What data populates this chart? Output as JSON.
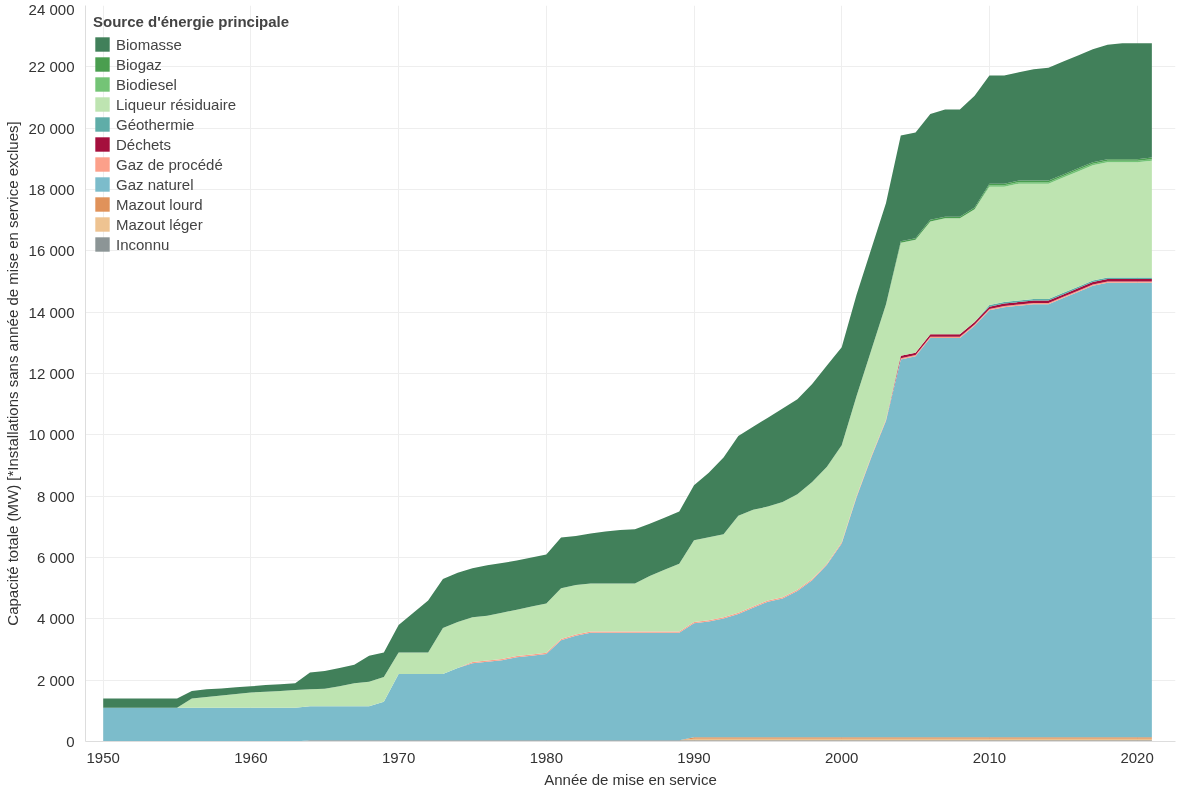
{
  "chart_data": {
    "type": "area",
    "stacked": true,
    "xlabel": "Année de mise en service",
    "ylabel": "Capacité totale (MW) [*Installations sans année de mise en service exclues]",
    "legend_title": "Source d'énergie principale",
    "legend": "top left",
    "grid": true,
    "x": [
      1950,
      1951,
      1952,
      1953,
      1954,
      1955,
      1956,
      1957,
      1958,
      1959,
      1960,
      1961,
      1962,
      1963,
      1964,
      1965,
      1966,
      1967,
      1968,
      1969,
      1970,
      1971,
      1972,
      1973,
      1974,
      1975,
      1976,
      1977,
      1978,
      1979,
      1980,
      1981,
      1982,
      1983,
      1984,
      1985,
      1986,
      1987,
      1988,
      1989,
      1990,
      1991,
      1992,
      1993,
      1994,
      1995,
      1996,
      1997,
      1998,
      1999,
      2000,
      2001,
      2002,
      2003,
      2004,
      2005,
      2006,
      2007,
      2008,
      2009,
      2010,
      2011,
      2012,
      2013,
      2014,
      2015,
      2016,
      2017,
      2018,
      2019,
      2020,
      2021
    ],
    "xlim": [
      1948.8,
      2022.6
    ],
    "xticks": [
      1950,
      1960,
      1970,
      1980,
      1990,
      2000,
      2010,
      2020
    ],
    "ylim": [
      0,
      24000
    ],
    "yticks": [
      0,
      {
        "value": 2000,
        "label": "2 000"
      },
      {
        "value": 4000,
        "label": "4 000"
      },
      {
        "value": 6000,
        "label": "6 000"
      },
      {
        "value": 8000,
        "label": "8 000"
      },
      {
        "value": 10000,
        "label": "10 000"
      },
      {
        "value": 12000,
        "label": "12 000"
      },
      {
        "value": 14000,
        "label": "14 000"
      },
      {
        "value": 16000,
        "label": "16 000"
      },
      {
        "value": 18000,
        "label": "18 000"
      },
      {
        "value": 20000,
        "label": "20 000"
      },
      {
        "value": 22000,
        "label": "22 000"
      },
      {
        "value": 24000,
        "label": "24 000"
      }
    ],
    "series": [
      {
        "name": "Inconnu",
        "color": "#8c9596",
        "values": [
          0,
          0,
          0,
          0,
          0,
          0,
          0,
          0,
          0,
          0,
          0,
          0,
          0,
          0,
          40,
          40,
          40,
          40,
          40,
          40,
          40,
          40,
          40,
          40,
          40,
          40,
          40,
          40,
          40,
          40,
          40,
          40,
          40,
          40,
          40,
          40,
          40,
          40,
          40,
          40,
          40,
          40,
          40,
          40,
          40,
          40,
          40,
          40,
          40,
          40,
          40,
          40,
          40,
          40,
          40,
          40,
          40,
          40,
          40,
          40,
          40,
          40,
          40,
          40,
          40,
          40,
          40,
          40,
          40,
          40,
          40,
          40
        ]
      },
      {
        "name": "Mazout léger",
        "color": "#eec391",
        "values": [
          0,
          0,
          0,
          0,
          0,
          0,
          0,
          0,
          0,
          0,
          0,
          0,
          0,
          0,
          0,
          0,
          0,
          0,
          0,
          0,
          0,
          0,
          0,
          0,
          0,
          0,
          0,
          0,
          0,
          0,
          0,
          0,
          0,
          0,
          0,
          0,
          0,
          0,
          0,
          0,
          50,
          50,
          50,
          50,
          50,
          50,
          50,
          50,
          50,
          50,
          50,
          50,
          50,
          50,
          50,
          50,
          50,
          50,
          50,
          50,
          50,
          50,
          50,
          50,
          50,
          50,
          50,
          50,
          50,
          50,
          50,
          50
        ]
      },
      {
        "name": "Mazout lourd",
        "color": "#e0925a",
        "values": [
          0,
          0,
          0,
          0,
          0,
          0,
          0,
          0,
          0,
          0,
          0,
          0,
          0,
          0,
          0,
          0,
          0,
          0,
          0,
          0,
          0,
          0,
          0,
          0,
          0,
          0,
          0,
          0,
          0,
          0,
          0,
          0,
          0,
          0,
          0,
          0,
          0,
          0,
          0,
          0,
          50,
          50,
          50,
          50,
          50,
          50,
          50,
          50,
          50,
          50,
          50,
          50,
          50,
          50,
          50,
          50,
          50,
          50,
          50,
          50,
          50,
          50,
          50,
          50,
          50,
          50,
          50,
          50,
          50,
          50,
          50,
          50
        ]
      },
      {
        "name": "Gaz naturel",
        "color": "#7cbccb",
        "values": [
          1100,
          1100,
          1100,
          1100,
          1100,
          1100,
          1100,
          1100,
          1100,
          1100,
          1100,
          1100,
          1100,
          1100,
          1110,
          1110,
          1110,
          1110,
          1110,
          1260,
          2160,
          2160,
          2160,
          2160,
          2360,
          2510,
          2560,
          2610,
          2710,
          2760,
          2810,
          3260,
          3410,
          3510,
          3510,
          3510,
          3510,
          3510,
          3510,
          3510,
          3720,
          3770,
          3870,
          4020,
          4220,
          4420,
          4520,
          4770,
          5120,
          5620,
          6320,
          7820,
          9120,
          10320,
          12320,
          12420,
          13020,
          13020,
          13020,
          13420,
          13920,
          14020,
          14070,
          14120,
          14120,
          14320,
          14520,
          14720,
          14820,
          14820,
          14820,
          14820
        ]
      },
      {
        "name": "Gaz de procédé",
        "color": "#fca08a",
        "values": [
          0,
          0,
          0,
          0,
          0,
          0,
          0,
          0,
          0,
          0,
          0,
          0,
          0,
          0,
          0,
          0,
          0,
          0,
          0,
          0,
          0,
          0,
          0,
          0,
          0,
          40,
          40,
          40,
          40,
          40,
          40,
          40,
          40,
          40,
          40,
          40,
          40,
          40,
          40,
          40,
          40,
          40,
          40,
          40,
          40,
          40,
          40,
          40,
          40,
          40,
          40,
          40,
          40,
          40,
          40,
          40,
          40,
          40,
          40,
          40,
          40,
          40,
          40,
          40,
          40,
          40,
          40,
          40,
          40,
          40,
          40,
          40
        ]
      },
      {
        "name": "Déchets",
        "color": "#a50f3d",
        "values": [
          0,
          0,
          0,
          0,
          0,
          0,
          0,
          0,
          0,
          0,
          0,
          0,
          0,
          0,
          0,
          0,
          0,
          0,
          0,
          0,
          0,
          0,
          0,
          0,
          0,
          0,
          0,
          0,
          0,
          0,
          0,
          0,
          0,
          0,
          0,
          0,
          0,
          0,
          0,
          0,
          0,
          0,
          0,
          0,
          0,
          0,
          0,
          0,
          0,
          0,
          0,
          0,
          0,
          0,
          80,
          80,
          80,
          80,
          80,
          80,
          80,
          80,
          80,
          80,
          80,
          80,
          80,
          80,
          80,
          80,
          80,
          80
        ]
      },
      {
        "name": "Géothermie",
        "color": "#5fada8",
        "values": [
          0,
          0,
          0,
          0,
          0,
          0,
          0,
          0,
          0,
          0,
          0,
          0,
          0,
          0,
          0,
          0,
          0,
          0,
          0,
          0,
          0,
          0,
          0,
          0,
          0,
          0,
          0,
          0,
          0,
          0,
          0,
          0,
          0,
          0,
          0,
          0,
          0,
          0,
          0,
          0,
          0,
          0,
          0,
          0,
          0,
          0,
          0,
          0,
          0,
          0,
          0,
          0,
          0,
          0,
          0,
          0,
          0,
          0,
          0,
          0,
          50,
          50,
          50,
          50,
          50,
          50,
          50,
          50,
          50,
          50,
          50,
          50
        ]
      },
      {
        "name": "Liqueur résiduaire",
        "color": "#bee4b1",
        "values": [
          0,
          0,
          0,
          0,
          0,
          0,
          300,
          350,
          400,
          450,
          500,
          520,
          550,
          580,
          550,
          570,
          650,
          750,
          800,
          800,
          700,
          700,
          700,
          1500,
          1500,
          1460,
          1460,
          1510,
          1510,
          1560,
          1610,
          1660,
          1610,
          1560,
          1560,
          1560,
          1560,
          1810,
          2010,
          2210,
          2660,
          2710,
          2710,
          3160,
          3160,
          3060,
          3110,
          3110,
          3160,
          3160,
          3160,
          3260,
          3460,
          3760,
          3680,
          3680,
          3680,
          3780,
          3780,
          3680,
          3860,
          3760,
          3810,
          3760,
          3760,
          3760,
          3760,
          3760,
          3760,
          3760,
          3760,
          3810
        ]
      },
      {
        "name": "Biodiesel",
        "color": "#74c476",
        "values": [
          0,
          0,
          0,
          0,
          0,
          0,
          0,
          0,
          0,
          0,
          0,
          0,
          0,
          0,
          0,
          0,
          0,
          0,
          0,
          0,
          0,
          0,
          0,
          0,
          0,
          0,
          0,
          0,
          0,
          0,
          0,
          0,
          0,
          0,
          0,
          0,
          0,
          0,
          0,
          0,
          0,
          0,
          0,
          0,
          0,
          0,
          0,
          0,
          0,
          0,
          0,
          0,
          0,
          0,
          0,
          0,
          0,
          0,
          0,
          0,
          50,
          50,
          50,
          50,
          50,
          50,
          50,
          50,
          50,
          50,
          50,
          50
        ]
      },
      {
        "name": "Biogaz",
        "color": "#4a9e4f",
        "values": [
          0,
          0,
          0,
          0,
          0,
          0,
          0,
          0,
          0,
          0,
          0,
          0,
          0,
          0,
          0,
          0,
          0,
          0,
          0,
          0,
          0,
          0,
          0,
          0,
          0,
          0,
          0,
          0,
          0,
          0,
          0,
          0,
          0,
          0,
          0,
          0,
          0,
          0,
          0,
          0,
          0,
          0,
          0,
          0,
          0,
          0,
          0,
          0,
          0,
          0,
          0,
          0,
          0,
          0,
          50,
          50,
          50,
          50,
          50,
          50,
          50,
          50,
          50,
          50,
          50,
          50,
          50,
          50,
          50,
          50,
          50,
          50
        ]
      },
      {
        "name": "Biomasse",
        "color": "#41805a",
        "values": [
          300,
          300,
          300,
          300,
          300,
          300,
          250,
          250,
          230,
          220,
          200,
          220,
          220,
          220,
          550,
          580,
          600,
          600,
          850,
          800,
          900,
          1300,
          1700,
          1600,
          1600,
          1600,
          1650,
          1620,
          1600,
          1600,
          1600,
          1650,
          1600,
          1630,
          1700,
          1750,
          1770,
          1700,
          1700,
          1700,
          1800,
          2100,
          2500,
          2600,
          2700,
          2900,
          3050,
          3100,
          3200,
          3300,
          3200,
          3300,
          3300,
          3300,
          3450,
          3450,
          3450,
          3500,
          3500,
          3650,
          3530,
          3530,
          3530,
          3630,
          3680,
          3680,
          3680,
          3680,
          3730,
          3780,
          3780,
          3730
        ]
      }
    ]
  }
}
